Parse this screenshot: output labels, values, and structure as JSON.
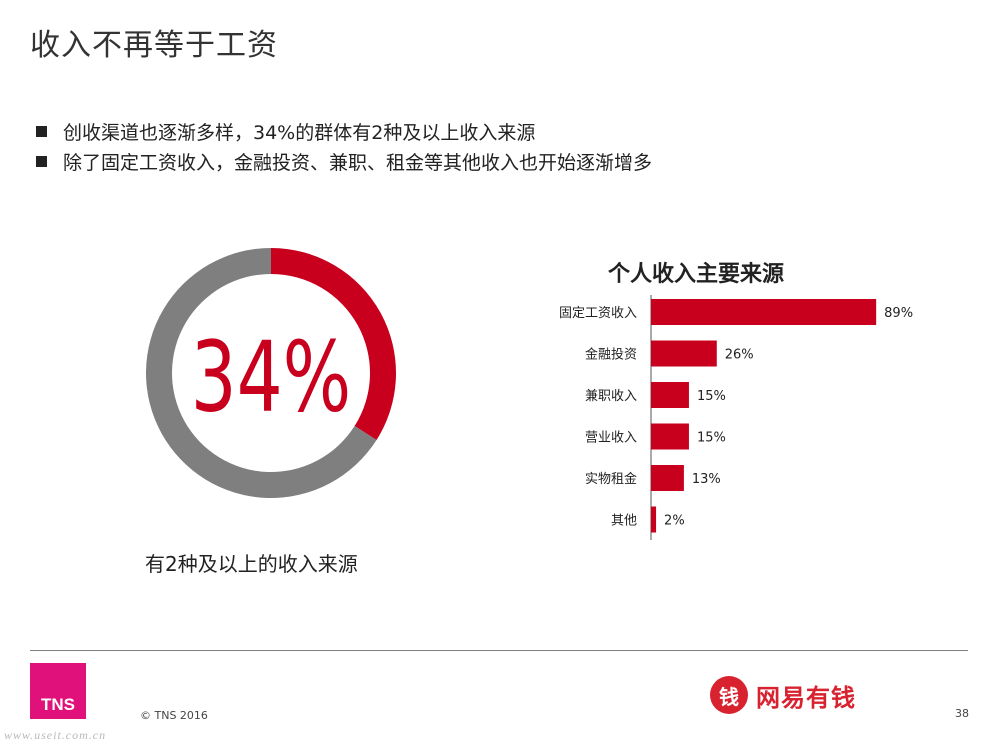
{
  "title": "收入不再等于工资",
  "bullets": [
    "创收渠道也逐渐多样，34%的群体有2种及以上收入来源",
    "除了固定工资收入，金融投资、兼职、租金等其他收入也开始逐渐增多"
  ],
  "colors": {
    "accent": "#c8001e",
    "donut_rest": "#7f7f7f",
    "tns": "#e0117a",
    "brand": "#d8222f"
  },
  "donut": {
    "value_label": "34%",
    "caption": "有2种及以上的收入来源"
  },
  "footer": {
    "copyright": "© TNS 2016",
    "page": "38",
    "tns_logo": "TNS",
    "brand_name": "网易有钱",
    "brand_icon_glyph": "钱",
    "watermark": "www.useit.com.cn"
  },
  "chart_data": [
    {
      "type": "pie",
      "categories": [
        "有2种及以上的收入来源",
        ""
      ],
      "values": [
        34,
        66
      ],
      "title": "",
      "data_label": "34%"
    },
    {
      "type": "bar",
      "orientation": "horizontal",
      "title": "个人收入主要来源",
      "categories": [
        "固定工资收入",
        "金融投资",
        "兼职收入",
        "营业收入",
        "实物租金",
        "其他"
      ],
      "values": [
        89,
        26,
        15,
        15,
        13,
        2
      ],
      "value_labels": [
        "89%",
        "26%",
        "15%",
        "15%",
        "13%",
        "2%"
      ],
      "xlim": [
        0,
        100
      ],
      "grid": false
    }
  ]
}
